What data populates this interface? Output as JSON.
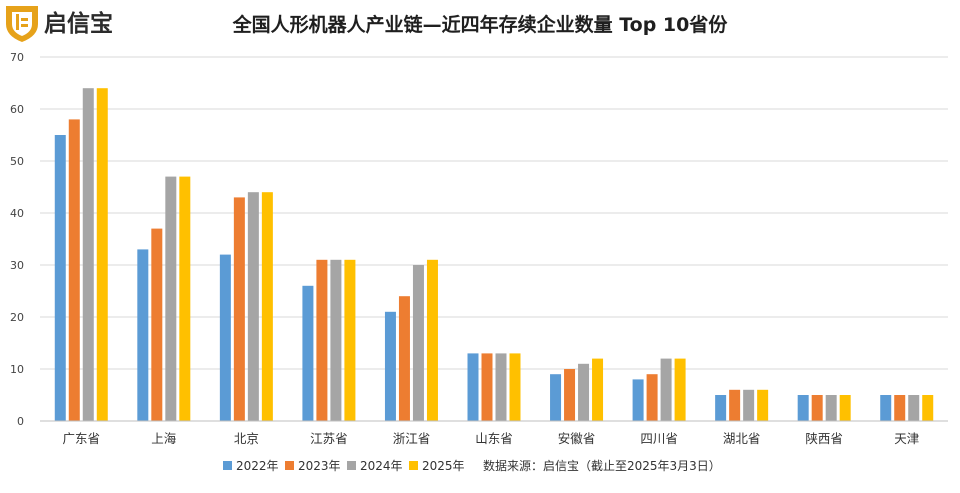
{
  "logo": {
    "text": "启信宝"
  },
  "chart_data": {
    "type": "bar",
    "title": "全国人形机器人产业链—近四年存续企业数量 Top 10省份",
    "categories": [
      "广东省",
      "上海",
      "北京",
      "江苏省",
      "浙江省",
      "山东省",
      "安徽省",
      "四川省",
      "湖北省",
      "陕西省",
      "天津"
    ],
    "series": [
      {
        "name": "2022年",
        "color": "#5B9BD5",
        "values": [
          55,
          33,
          32,
          26,
          21,
          13,
          9,
          8,
          5,
          5,
          5
        ]
      },
      {
        "name": "2023年",
        "color": "#ED7D31",
        "values": [
          58,
          37,
          43,
          31,
          24,
          13,
          10,
          9,
          6,
          5,
          5
        ]
      },
      {
        "name": "2024年",
        "color": "#A5A5A5",
        "values": [
          64,
          47,
          44,
          31,
          30,
          13,
          11,
          12,
          6,
          5,
          5
        ]
      },
      {
        "name": "2025年",
        "color": "#FFC000",
        "values": [
          64,
          47,
          44,
          31,
          31,
          13,
          12,
          12,
          6,
          5,
          5
        ]
      }
    ],
    "ylim": [
      0,
      70
    ],
    "yticks": [
      0,
      10,
      20,
      30,
      40,
      50,
      60,
      70
    ],
    "grid": true,
    "legend_position": "bottom",
    "source_note": "数据来源：启信宝（截止至2025年3月3日）"
  }
}
